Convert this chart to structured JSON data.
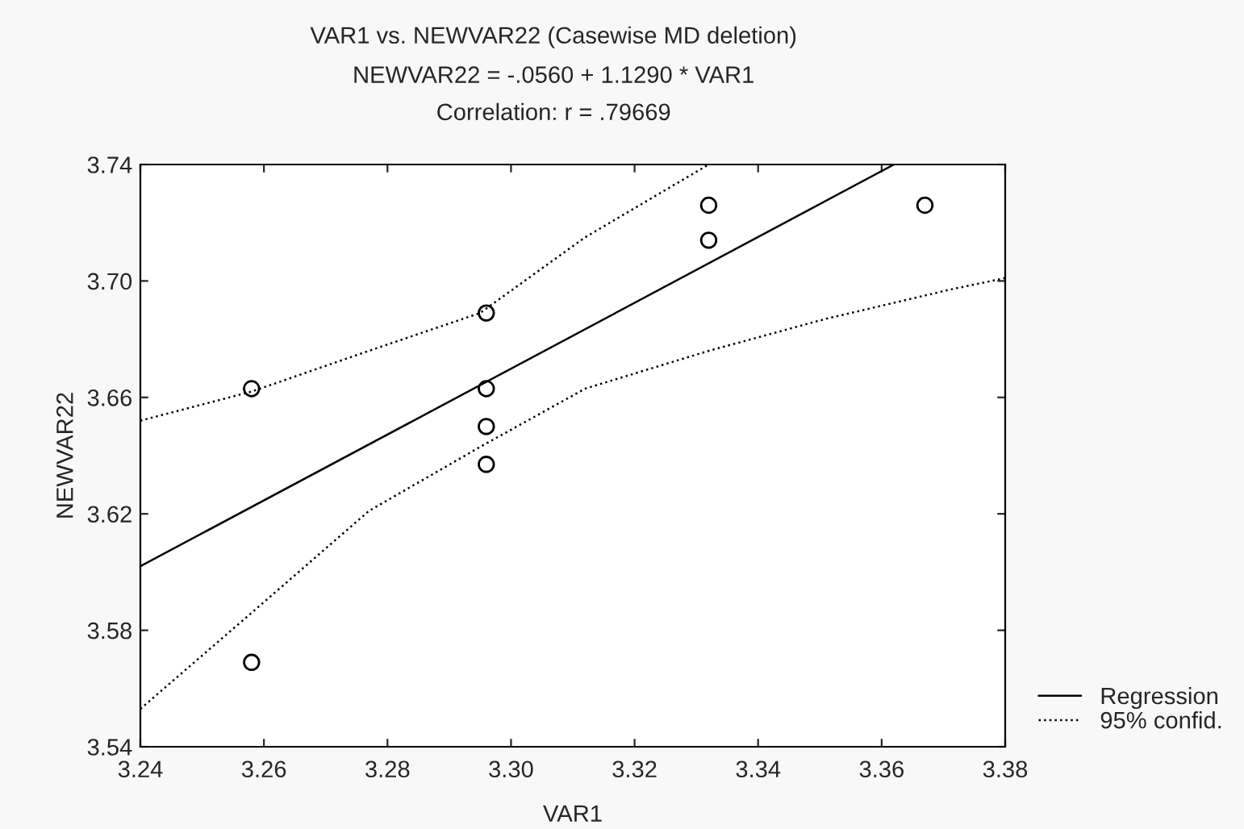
{
  "chart_data": {
    "type": "scatter",
    "title": "VAR1 vs. NEWVAR22 (Casewise MD deletion)",
    "subtitle": "NEWVAR22 = -.0560 + 1.1290 * VAR1\nCorrelation: r = .79669",
    "xlabel": "VAR1",
    "ylabel": "NEWVAR22",
    "xlim": [
      3.24,
      3.38
    ],
    "xticks": [
      {
        "value": 3.24,
        "label": "3.24"
      },
      {
        "value": 3.26,
        "label": "3.26"
      },
      {
        "value": 3.28,
        "label": "3.28"
      },
      {
        "value": 3.3,
        "label": "3.30"
      },
      {
        "value": 3.32,
        "label": "3.32"
      },
      {
        "value": 3.34,
        "label": "3.34"
      },
      {
        "value": 3.36,
        "label": "3.36"
      },
      {
        "value": 3.38,
        "label": "3.38"
      }
    ],
    "ylim": [
      3.54,
      3.74
    ],
    "yticks": [
      {
        "value": 3.54,
        "label": "3.54"
      },
      {
        "value": 3.58,
        "label": "3.58"
      },
      {
        "value": 3.62,
        "label": "3.62"
      },
      {
        "value": 3.66,
        "label": "3.66"
      },
      {
        "value": 3.7,
        "label": "3.70"
      },
      {
        "value": 3.74,
        "label": "3.74"
      }
    ],
    "grid": false,
    "legend": "bottom right",
    "series": [
      {
        "marker": "circle",
        "color": "#000000",
        "x": [
          3.258,
          3.258,
          3.296,
          3.296,
          3.296,
          3.296,
          3.332,
          3.332,
          3.367
        ],
        "values": [
          3.663,
          3.569,
          3.689,
          3.663,
          3.65,
          3.637,
          3.726,
          3.714,
          3.726
        ]
      },
      {
        "type": "line",
        "name": "Regression",
        "line_style": "solid",
        "color": "#000000",
        "x": [
          3.24,
          3.362
        ],
        "values": [
          3.602,
          3.74
        ]
      },
      {
        "type": "line",
        "name": "95% confid.",
        "line_style": "dotted",
        "color": "#000000",
        "x": [
          3.24,
          3.258,
          3.277,
          3.295,
          3.312,
          3.332
        ],
        "values": [
          3.652,
          3.662,
          3.676,
          3.689,
          3.715,
          3.74
        ]
      },
      {
        "type": "line",
        "line_style": "dotted",
        "color": "#000000",
        "x": [
          3.24,
          3.258,
          3.277,
          3.295,
          3.312,
          3.332,
          3.351,
          3.371,
          3.38
        ],
        "values": [
          3.553,
          3.586,
          3.621,
          3.643,
          3.663,
          3.676,
          3.687,
          3.697,
          3.701
        ]
      }
    ]
  }
}
